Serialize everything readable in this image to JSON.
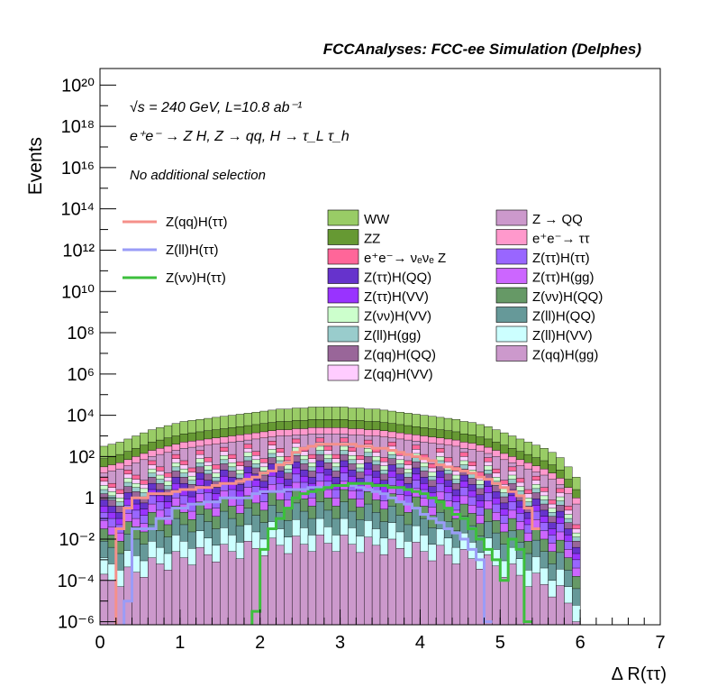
{
  "chart_data": {
    "type": "histogram-stacked",
    "title": "FCCAnalyses: FCC-ee Simulation (Delphes)",
    "xlabel": "Δ R(ττ)",
    "ylabel": "Events",
    "xlim": [
      0,
      7
    ],
    "ylim_log10": [
      -6.15,
      20.8
    ],
    "y_scale": "log",
    "grid": false,
    "annotations": {
      "energy": "√s = 240 GeV, L=10.8 ab⁻¹",
      "process": "e⁺e⁻ → Z H, Z → qq, H → τ_L τ_h",
      "selection": "No additional selection"
    },
    "x_ticks": [
      {
        "v": 0,
        "label": "0"
      },
      {
        "v": 1,
        "label": "1"
      },
      {
        "v": 2,
        "label": "2"
      },
      {
        "v": 3,
        "label": "3"
      },
      {
        "v": 4,
        "label": "4"
      },
      {
        "v": 5,
        "label": "5"
      },
      {
        "v": 6,
        "label": "6"
      },
      {
        "v": 7,
        "label": "7"
      }
    ],
    "y_ticks": [
      {
        "e": -6,
        "label": "10⁻⁶"
      },
      {
        "e": -4,
        "label": "10⁻⁴"
      },
      {
        "e": -2,
        "label": "10⁻²"
      },
      {
        "e": 0,
        "label": "1"
      },
      {
        "e": 2,
        "label": "10²"
      },
      {
        "e": 4,
        "label": "10⁴"
      },
      {
        "e": 6,
        "label": "10⁶"
      },
      {
        "e": 8,
        "label": "10⁸"
      },
      {
        "e": 10,
        "label": "10¹⁰"
      },
      {
        "e": 12,
        "label": "10¹²"
      },
      {
        "e": 14,
        "label": "10¹⁴"
      },
      {
        "e": 16,
        "label": "10¹⁶"
      },
      {
        "e": 18,
        "label": "10¹⁸"
      },
      {
        "e": 20,
        "label": "10²⁰"
      }
    ],
    "legend_signal": [
      {
        "label": "Z(qq)H(ττ)",
        "color": "#f5908a"
      },
      {
        "label": "Z(ll)H(ττ)",
        "color": "#9a9cf7"
      },
      {
        "label": "Z(νν)H(ττ)",
        "color": "#3cbf3c"
      }
    ],
    "legend_backgrounds": [
      {
        "label": "WW",
        "color": "#99cc66"
      },
      {
        "label": "ZZ",
        "color": "#669933"
      },
      {
        "label": "e⁺e⁻→ νₑνₑ Z",
        "color": "#ff6699"
      },
      {
        "label": "Z(ττ)H(QQ)",
        "color": "#6633cc"
      },
      {
        "label": "Z(ττ)H(VV)",
        "color": "#9933ff"
      },
      {
        "label": "Z(νν)H(VV)",
        "color": "#ccffcc"
      },
      {
        "label": "Z(ll)H(gg)",
        "color": "#99cccc"
      },
      {
        "label": "Z(qq)H(QQ)",
        "color": "#996699"
      },
      {
        "label": "Z(qq)H(VV)",
        "color": "#ffccff"
      },
      {
        "label": "Z → QQ",
        "color": "#cc99cc"
      },
      {
        "label": "e⁺e⁻→ ττ",
        "color": "#ff99cc"
      },
      {
        "label": "Z(ττ)H(ττ)",
        "color": "#9966ff"
      },
      {
        "label": "Z(ττ)H(gg)",
        "color": "#cc66ff"
      },
      {
        "label": "Z(νν)H(QQ)",
        "color": "#669966"
      },
      {
        "label": "Z(ll)H(QQ)",
        "color": "#669999"
      },
      {
        "label": "Z(ll)H(VV)",
        "color": "#ccffff"
      },
      {
        "label": "Z(qq)H(gg)",
        "color": "#cc99cc"
      }
    ],
    "x_bin_edges_start": 0,
    "x_bin_width": 0.1,
    "stack_totals_log10": [
      2.5,
      2.6,
      2.7,
      2.85,
      3.0,
      3.15,
      3.3,
      3.4,
      3.5,
      3.6,
      3.7,
      3.75,
      3.8,
      3.85,
      3.9,
      3.95,
      4.0,
      4.05,
      4.1,
      4.15,
      4.2,
      4.25,
      4.3,
      4.3,
      4.35,
      4.35,
      4.4,
      4.4,
      4.4,
      4.4,
      4.4,
      4.35,
      4.35,
      4.3,
      4.3,
      4.25,
      4.2,
      4.15,
      4.1,
      4.05,
      4.0,
      3.95,
      3.9,
      3.85,
      3.8,
      3.7,
      3.65,
      3.55,
      3.45,
      3.3,
      3.15,
      3.0,
      2.85,
      2.7,
      2.55,
      2.4,
      2.2,
      1.95,
      1.5,
      1.0
    ],
    "series_signal_log10": [
      {
        "name": "Z(qq)H(ττ)",
        "edges": [
          0.2,
          0.3,
          0.4,
          0.5,
          0.6,
          0.7,
          0.8,
          0.9,
          1.0,
          1.1,
          1.2,
          1.3,
          1.4,
          1.5,
          1.6,
          1.7,
          1.8,
          1.9,
          2.0,
          2.1,
          2.2,
          2.3,
          2.4,
          2.5,
          2.6,
          2.7,
          2.8,
          2.9,
          3.0,
          3.1,
          3.2,
          3.3,
          3.4,
          3.5,
          3.6,
          3.7,
          3.8,
          3.9,
          4.0,
          4.1,
          4.2,
          4.3,
          4.4,
          4.5,
          4.6,
          4.7,
          4.8,
          4.9,
          5.0,
          5.1,
          5.2,
          5.3,
          5.4,
          5.5
        ],
        "values": [
          -1.5,
          -0.5,
          0.0,
          0.0,
          0.2,
          0.2,
          0.2,
          0.3,
          0.4,
          0.4,
          0.5,
          0.5,
          0.6,
          0.7,
          0.7,
          0.8,
          0.9,
          1.0,
          1.2,
          1.3,
          1.6,
          1.7,
          2.2,
          2.4,
          2.5,
          2.6,
          2.6,
          2.6,
          2.6,
          2.6,
          2.5,
          2.5,
          2.4,
          2.4,
          2.3,
          2.2,
          2.1,
          2.0,
          1.9,
          1.8,
          1.6,
          1.5,
          1.4,
          1.3,
          1.2,
          1.0,
          0.9,
          0.7,
          0.5,
          0.3,
          0.1,
          -0.5,
          -1.5
        ]
      },
      {
        "name": "Z(ll)H(ττ)",
        "edges": [
          0.3,
          0.4,
          0.5,
          0.6,
          0.7,
          0.8,
          0.9,
          1.0,
          1.1,
          1.2,
          1.3,
          1.4,
          1.5,
          1.6,
          1.7,
          1.8,
          1.9,
          2.0,
          2.1,
          2.2,
          2.3,
          2.4,
          2.5,
          2.6,
          2.7,
          2.8,
          2.9,
          3.0,
          3.1,
          3.2,
          3.3,
          3.4,
          3.5,
          3.6,
          3.7,
          3.8,
          3.9,
          4.0,
          4.1,
          4.2,
          4.3,
          4.4,
          4.5,
          4.6,
          4.7,
          4.8,
          4.9
        ],
        "values": [
          -5.0,
          -1.5,
          -1.5,
          -1.5,
          -1.0,
          -1.0,
          -0.5,
          -0.5,
          -0.3,
          -0.3,
          -0.2,
          -0.2,
          0.0,
          0.0,
          0.0,
          0.0,
          0.2,
          0.3,
          0.3,
          0.3,
          0.4,
          0.4,
          0.4,
          0.5,
          0.5,
          0.5,
          0.6,
          0.6,
          0.6,
          0.5,
          0.4,
          0.3,
          0.2,
          0.0,
          -0.2,
          -0.3,
          -0.5,
          -0.8,
          -1.0,
          -1.2,
          -1.5,
          -1.7,
          -2.0,
          -2.5,
          -3.0,
          -6.0
        ]
      },
      {
        "name": "Z(νν)H(ττ)",
        "edges": [
          1.9,
          2.0,
          2.1,
          2.2,
          2.3,
          2.4,
          2.5,
          2.6,
          2.7,
          2.8,
          2.9,
          3.0,
          3.1,
          3.2,
          3.3,
          3.4,
          3.5,
          3.6,
          3.7,
          3.8,
          3.9,
          4.0,
          4.1,
          4.2,
          4.3,
          4.4,
          4.5,
          4.6,
          4.7,
          4.8,
          4.9,
          5.0,
          5.1,
          5.2,
          5.3,
          5.4
        ],
        "values": [
          -5.5,
          -2.5,
          -1.5,
          -1.0,
          -0.5,
          0.0,
          0.2,
          0.3,
          0.4,
          0.5,
          0.6,
          0.6,
          0.7,
          0.7,
          0.7,
          0.6,
          0.6,
          0.5,
          0.5,
          0.4,
          0.3,
          0.2,
          0.0,
          -0.2,
          -0.5,
          -0.8,
          -1.0,
          -1.5,
          -2.0,
          -2.5,
          -3.0,
          -4.0,
          -2.0,
          -2.5,
          -6.0
        ]
      }
    ]
  }
}
